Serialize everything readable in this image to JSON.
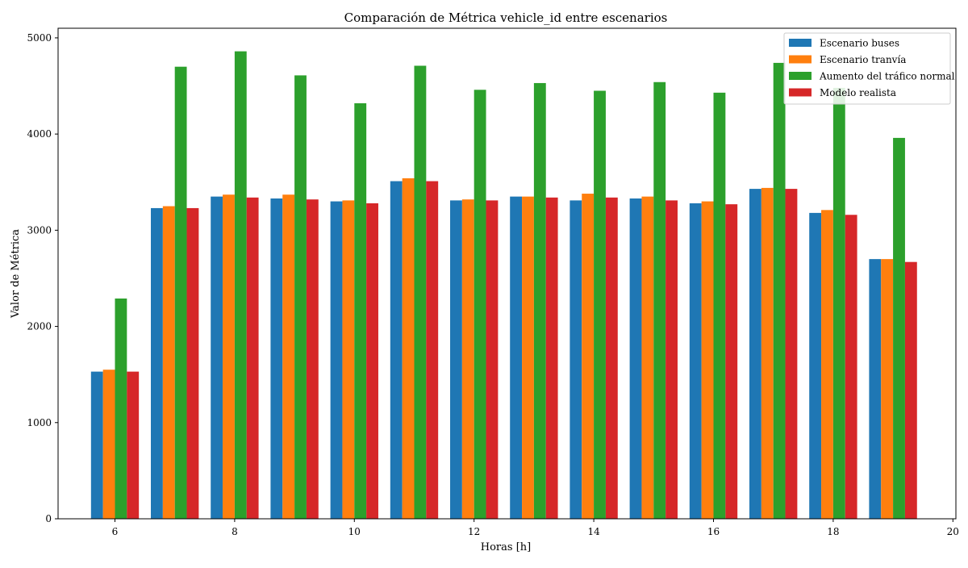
{
  "chart_data": {
    "type": "bar",
    "title": "Comparación de Métrica vehicle_id entre escenarios",
    "xlabel": "Horas [h]",
    "ylabel": "Valor de Métrica",
    "x": [
      6,
      7,
      8,
      9,
      10,
      11,
      12,
      13,
      14,
      15,
      16,
      17,
      18,
      19
    ],
    "xlim": [
      5.05,
      20.05
    ],
    "ylim": [
      0,
      5100
    ],
    "xticks": [
      6,
      8,
      10,
      12,
      14,
      16,
      18,
      20
    ],
    "yticks": [
      0,
      1000,
      2000,
      3000,
      4000,
      5000
    ],
    "grid": false,
    "legend_position": "top-right",
    "series": [
      {
        "name": "Escenario buses",
        "color": "#1f77b4",
        "values": [
          1530,
          3230,
          3350,
          3330,
          3300,
          3510,
          3310,
          3350,
          3310,
          3330,
          3280,
          3430,
          3180,
          2700
        ]
      },
      {
        "name": "Escenario tranvía",
        "color": "#ff7f0e",
        "values": [
          1550,
          3250,
          3370,
          3370,
          3310,
          3540,
          3320,
          3350,
          3380,
          3350,
          3300,
          3440,
          3210,
          2700
        ]
      },
      {
        "name": "Aumento del tráfico normal",
        "color": "#2ca02c",
        "values": [
          2290,
          4700,
          4860,
          4610,
          4320,
          4710,
          4460,
          4530,
          4450,
          4540,
          4430,
          4740,
          4480,
          3960
        ]
      },
      {
        "name": "Modelo realista",
        "color": "#d62728",
        "values": [
          1530,
          3230,
          3340,
          3320,
          3280,
          3510,
          3310,
          3340,
          3340,
          3310,
          3270,
          3430,
          3160,
          2670
        ]
      }
    ]
  }
}
